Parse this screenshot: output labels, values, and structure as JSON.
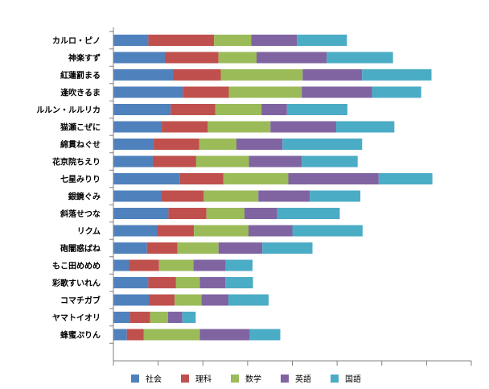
{
  "chart_data": {
    "type": "bar",
    "orientation": "horizontal",
    "stacked": true,
    "title": "",
    "xlabel": "",
    "ylabel": "",
    "xlim": [
      0,
      80
    ],
    "grid": false,
    "legend_position": "bottom",
    "categories": [
      "カルロ・ピノ",
      "神楽すず",
      "紅蓮罰まる",
      "逢吹きるま",
      "ルルン・ルルリカ",
      "猫瀬こぜに",
      "綿貫ねぐせ",
      "花京院ちえり",
      "七星みりり",
      "銀鏡ぐみ",
      "斜落せつな",
      "リクム",
      "砲闇惑ばね",
      "もこ田めめめ",
      "彩歌すいれん",
      "コマチガブ",
      "ヤマトイオリ",
      "蜂蜜ぷりん"
    ],
    "series": [
      {
        "name": "社会",
        "color": "#4F81BD",
        "values": [
          7.8,
          11.5,
          13.3,
          15.5,
          12.8,
          10.8,
          9.0,
          8.8,
          14.8,
          10.7,
          12.3,
          9.8,
          7.5,
          3.5,
          7.8,
          8.0,
          3.7,
          3.0
        ]
      },
      {
        "name": "理科",
        "color": "#C0504D",
        "values": [
          14.7,
          12.0,
          10.7,
          10.3,
          10.0,
          10.3,
          10.2,
          9.7,
          9.8,
          9.5,
          8.5,
          8.2,
          6.8,
          6.7,
          6.2,
          5.7,
          4.5,
          3.8
        ]
      },
      {
        "name": "数学",
        "color": "#9BBB59",
        "values": [
          8.3,
          8.5,
          18.3,
          16.3,
          10.3,
          14.0,
          8.3,
          11.8,
          14.5,
          12.2,
          8.5,
          12.2,
          9.2,
          7.7,
          5.3,
          6.0,
          4.0,
          12.5
        ]
      },
      {
        "name": "英語",
        "color": "#8064A2",
        "values": [
          10.2,
          15.7,
          13.3,
          15.7,
          5.7,
          14.7,
          10.3,
          11.8,
          20.2,
          11.5,
          7.3,
          9.8,
          9.8,
          7.2,
          5.7,
          6.0,
          3.2,
          11.2
        ]
      },
      {
        "name": "国語",
        "color": "#4BACC6",
        "values": [
          11.2,
          14.8,
          15.5,
          11.0,
          13.5,
          13.0,
          17.8,
          12.5,
          12.0,
          11.3,
          14.0,
          15.7,
          11.2,
          6.0,
          6.2,
          9.0,
          3.0,
          6.8
        ]
      }
    ]
  }
}
